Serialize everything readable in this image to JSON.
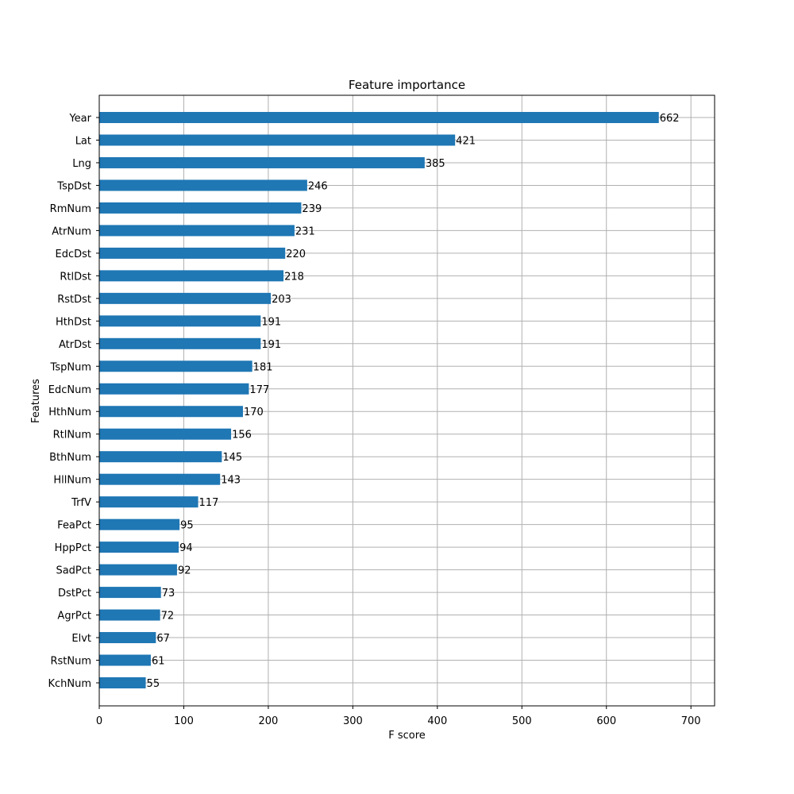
{
  "chart_data": {
    "type": "bar",
    "orientation": "horizontal",
    "title": "Feature importance",
    "xlabel": "F score",
    "ylabel": "Features",
    "xlim": [
      0,
      728
    ],
    "xticks": [
      0,
      100,
      200,
      300,
      400,
      500,
      600,
      700
    ],
    "grid": true,
    "legend": "none",
    "bar_color": "#1f77b4",
    "categories": [
      "Year",
      "Lat",
      "Lng",
      "TspDst",
      "RmNum",
      "AtrNum",
      "EdcDst",
      "RtlDst",
      "RstDst",
      "HthDst",
      "AtrDst",
      "TspNum",
      "EdcNum",
      "HthNum",
      "RtlNum",
      "BthNum",
      "HllNum",
      "TrfV",
      "FeaPct",
      "HppPct",
      "SadPct",
      "DstPct",
      "AgrPct",
      "Elvt",
      "RstNum",
      "KchNum"
    ],
    "values": [
      662,
      421,
      385,
      246,
      239,
      231,
      220,
      218,
      203,
      191,
      191,
      181,
      177,
      170,
      156,
      145,
      143,
      117,
      95,
      94,
      92,
      73,
      72,
      67,
      61,
      55
    ]
  }
}
